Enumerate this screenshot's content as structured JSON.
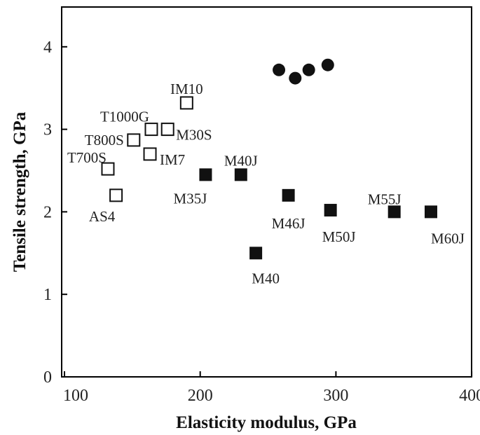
{
  "chart_data": {
    "type": "scatter",
    "title": "",
    "xlabel": "Elasticity modulus, GPa",
    "ylabel": "Tensile strength, GPa",
    "xlim": [
      100,
      400
    ],
    "ylim": [
      0,
      4.5
    ],
    "x_ticks": [
      "100",
      "200",
      "300",
      "400"
    ],
    "y_ticks": [
      "0",
      "1",
      "2",
      "3",
      "4"
    ],
    "grid": false,
    "legend": "none",
    "series": [
      {
        "marker": "open-square",
        "points": [
          {
            "label": "AS4",
            "x": 138,
            "y": 2.2
          },
          {
            "label": "T700S",
            "x": 132,
            "y": 2.52
          },
          {
            "label": "T800S",
            "x": 151,
            "y": 2.87
          },
          {
            "label": "T1000G",
            "x": 164,
            "y": 3.0
          },
          {
            "label": "IM7",
            "x": 163,
            "y": 2.7
          },
          {
            "label": "M30S",
            "x": 176,
            "y": 3.0
          },
          {
            "label": "IM10",
            "x": 190,
            "y": 3.32
          }
        ]
      },
      {
        "marker": "filled-square",
        "points": [
          {
            "label": "M35J",
            "x": 204,
            "y": 2.45
          },
          {
            "label": "M40J",
            "x": 230,
            "y": 2.45
          },
          {
            "label": "M40",
            "x": 241,
            "y": 1.5
          },
          {
            "label": "M46J",
            "x": 265,
            "y": 2.2
          },
          {
            "label": "M50J",
            "x": 296,
            "y": 2.02
          },
          {
            "label": "M55J",
            "x": 343,
            "y": 2.0
          },
          {
            "label": "M60J",
            "x": 370,
            "y": 2.0
          }
        ]
      },
      {
        "marker": "filled-circle",
        "points": [
          {
            "label": "",
            "x": 258,
            "y": 3.72
          },
          {
            "label": "",
            "x": 270,
            "y": 3.62
          },
          {
            "label": "",
            "x": 280,
            "y": 3.72
          },
          {
            "label": "",
            "x": 294,
            "y": 3.78
          }
        ]
      }
    ]
  }
}
